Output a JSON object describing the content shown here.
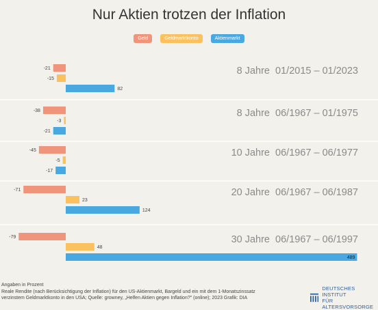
{
  "chart_data": {
    "type": "bar",
    "orientation": "horizontal",
    "title": "Nur Aktien trotzen der Inflation",
    "legend": [
      "Geld",
      "Geldmarktkonto",
      "Aktienmarkt"
    ],
    "colors": [
      "#f0957b",
      "#fbc15e",
      "#4aa8e0"
    ],
    "groups": [
      {
        "label": "8 Jahre  01/2015 – 01/2023",
        "values": [
          -21,
          -15,
          82
        ]
      },
      {
        "label": "8 Jahre  06/1967 – 01/1975",
        "values": [
          -38,
          -3,
          -21
        ]
      },
      {
        "label": "10 Jahre  06/1967 – 06/1977",
        "values": [
          -45,
          -5,
          -17
        ]
      },
      {
        "label": "20 Jahre  06/1967 – 06/1987",
        "values": [
          -71,
          23,
          124
        ]
      },
      {
        "label": "30 Jahre  06/1967 – 06/1997",
        "values": [
          -79,
          48,
          489
        ]
      }
    ],
    "xlim": [
      -79,
      489
    ],
    "unit": "Prozent"
  },
  "footer": {
    "line1": "Angaben in Prozent",
    "line2": "Reale Rendite (nach Berücksichtigung der Inflation) für den US-Aktienmarkt, Bargeld und ein mit dem 1-Monatszinssatz",
    "line3": "verzinstem Geldmarktkonto in den USA;   Quelle: growney, „Helfen Aktien gegen Inflation?\" (online); 2023   Grafik: DIA"
  },
  "logo": {
    "line1": "DEUTSCHES INSTITUT",
    "line2": "FÜR ALTERSVORSORGE",
    "icon": "dia-logo-icon",
    "color": "#2a5d9c"
  }
}
